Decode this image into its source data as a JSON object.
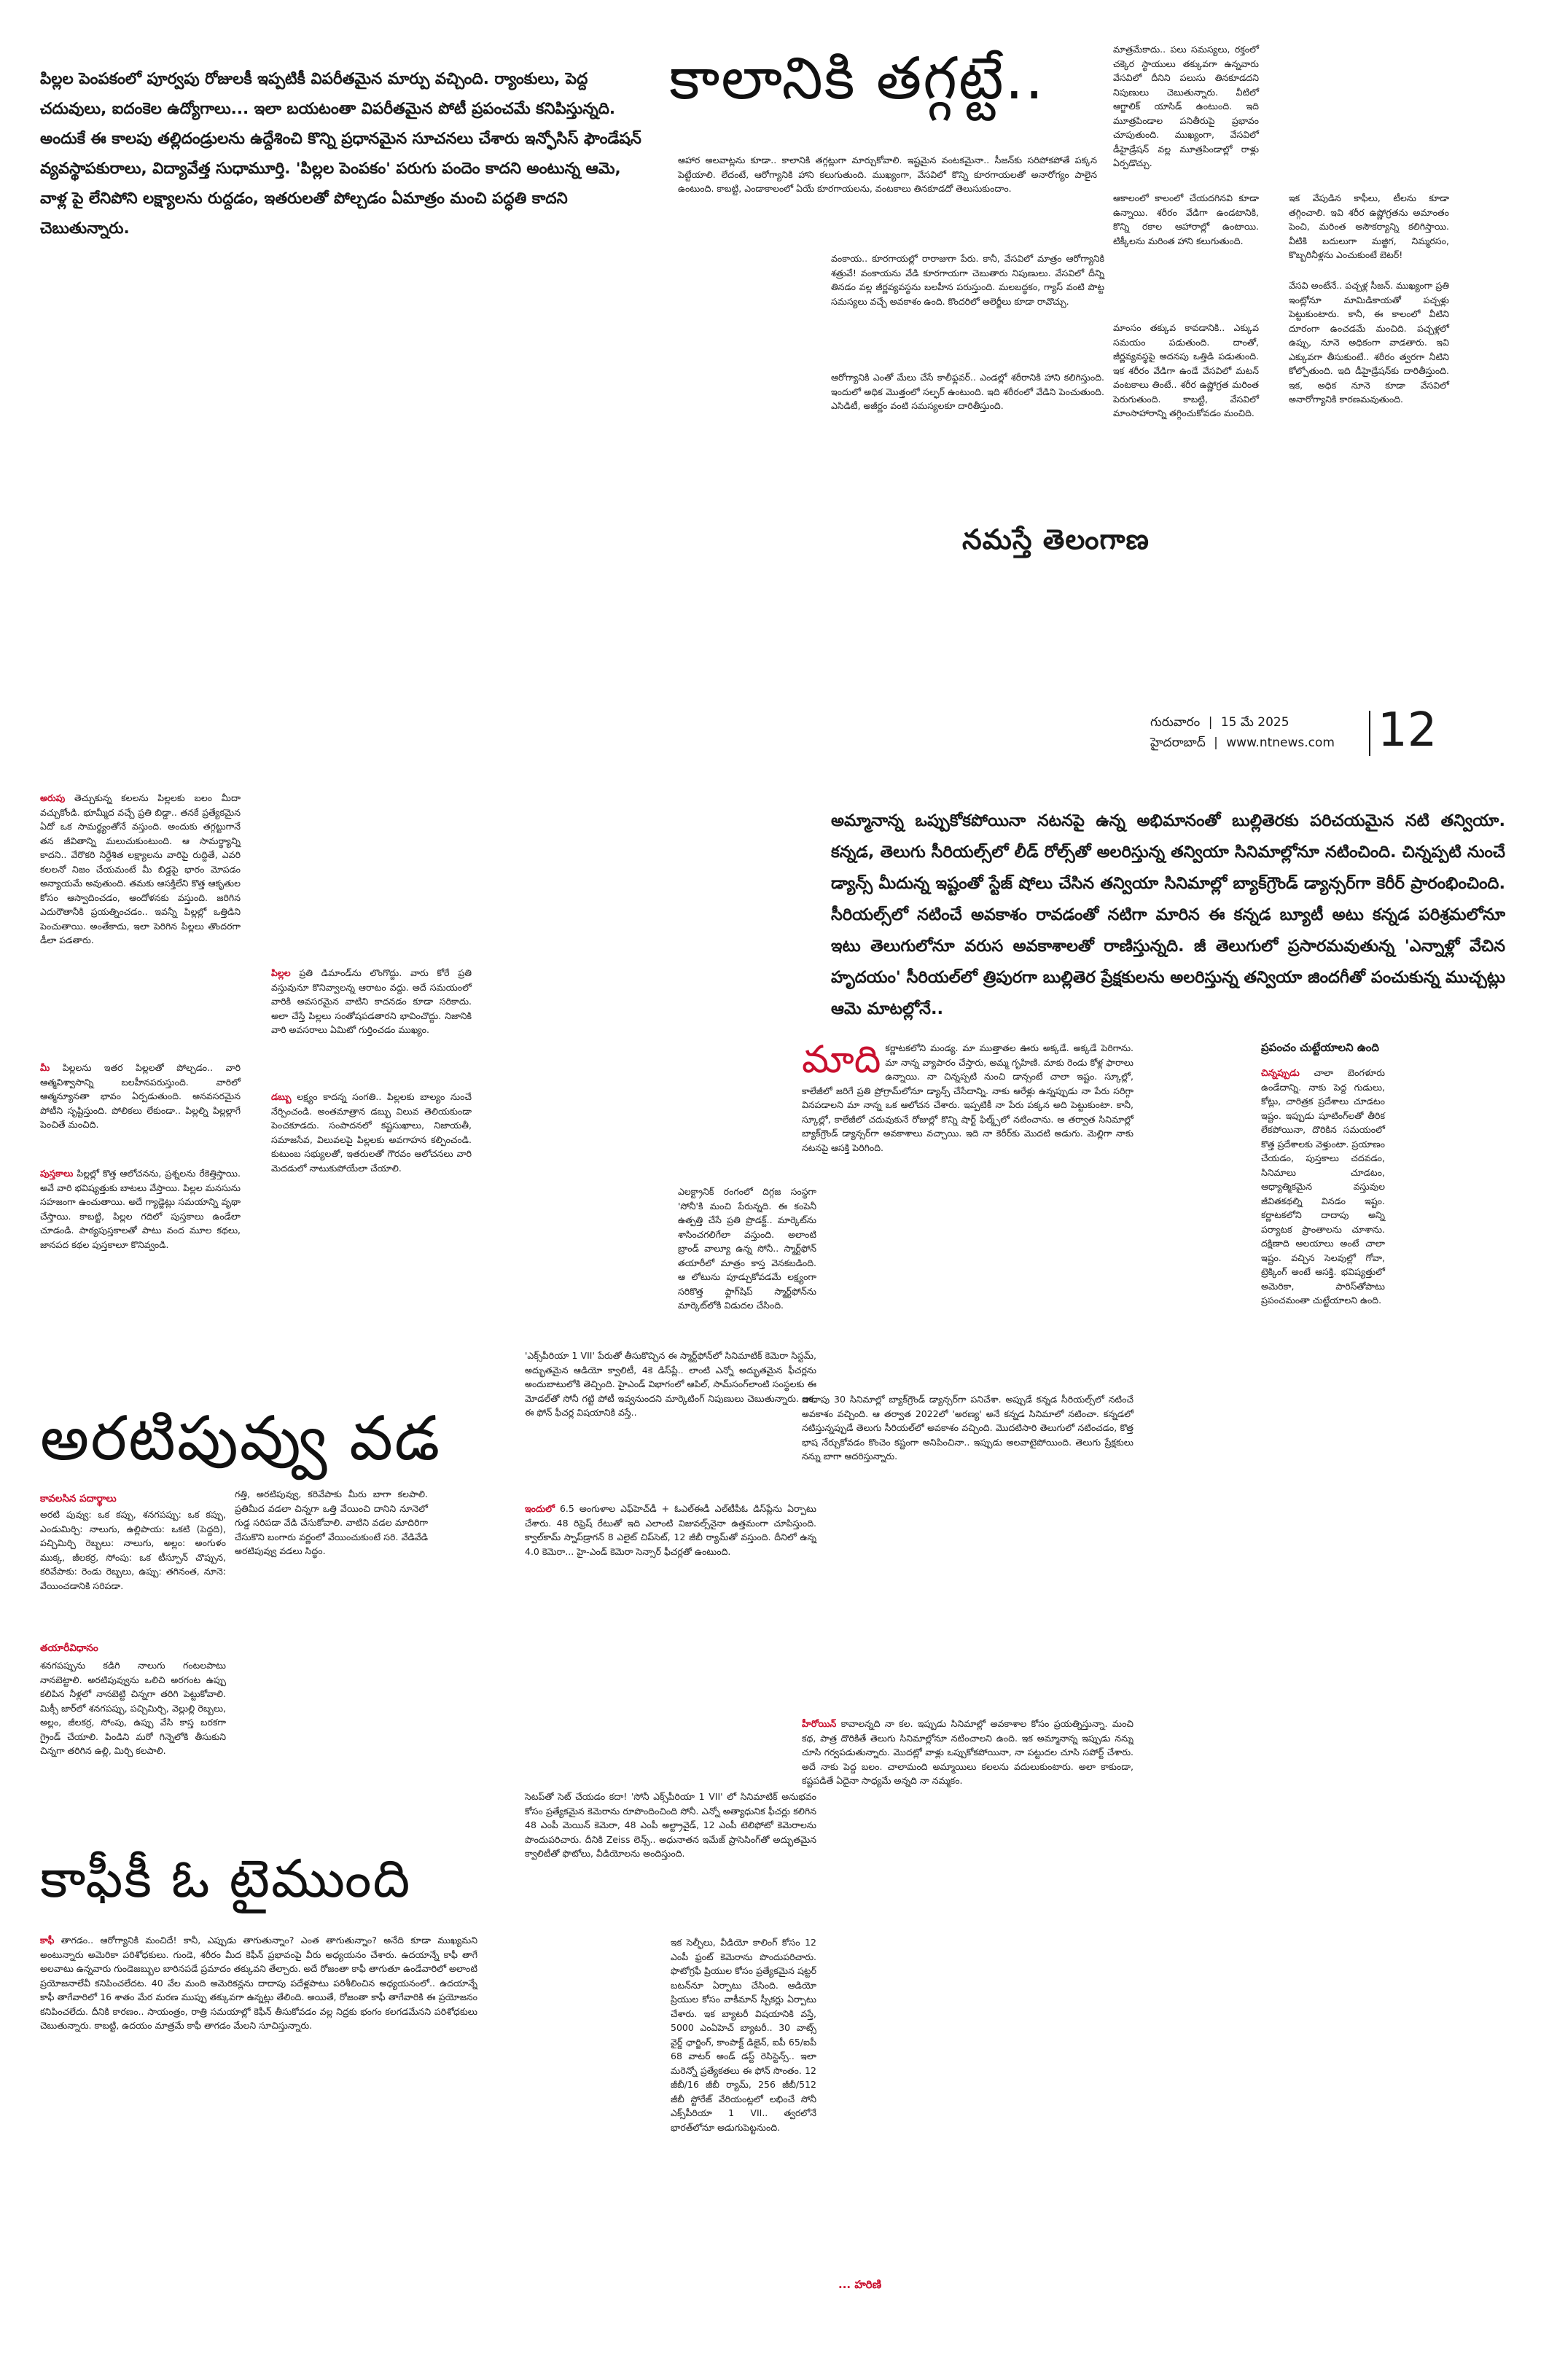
{
  "intro": {
    "paragraph": "పిల్లల పెంపకంలో పూర్వపు రోజులకీ ఇప్పటికీ విపరీతమైన మార్పు వచ్చింది. ర్యాంకులు, పెద్ద చదువులు, ఐదంకెల ఉద్యోగాలు... ఇలా బయటంతా విపరీతమైన పోటీ ప్రపంచమే కనిపిస్తున్నది. అందుకే ఈ కాలపు తల్లిదండ్రులను ఉద్దేశించి కొన్ని ప్రధానమైన సూచనలు చేశారు ఇన్ఫోసిస్ ఫౌండేషన్ వ్యవస్థాపకురాలు, విద్యావేత్త సుధామూర్తి. 'పిల్లల పెంపకం' పరుగు పందెం కాదని అంటున్న ఆమె, వాళ్ల పై లేనిపోని లక్ష్యాలను రుద్దడం, ఇతరులతో పోల్చడం ఏమాత్రం మంచి పద్ధతి కాదని చెబుతున్నారు."
  },
  "kalaniki": {
    "title": "కాలానికి తగ్గట్టే..",
    "col1": "ఆహార అలవాట్లను కూడా.. కాలానికి తగ్గట్లుగా మార్చుకోవాలి. ఇష్టమైన వంటకమైనా.. సీజన్‌కు సరిపోకపోతే పక్కన పెట్టేయాలి. లేదంటే, ఆరోగ్యానికి హాని కలుగుతుంది. ముఖ్యంగా, వేసవిలో కొన్ని కూరగాయలతో అనారోగ్యం పాలైన ఉంటుంది. కాబట్టి, ఎండాకాలంలో ఏయే కూరగాయలను, వంటకాలు తినకూడదో తెలుసుకుందాం.",
    "col1b": "వంకాయ.. కూరగాయల్లో రారాజుగా పేరు. కానీ, వేసవిలో మాత్రం ఆరోగ్యానికి శత్రువే! వంకాయను వేడి కూరగాయగా చెబుతారు నిపుణులు. వేసవిలో దీన్ని తినడం వల్ల జీర్ణవ్యవస్థను బలహీన పరుస్తుంది. మలబద్ధకం, గ్యాస్ వంటి పొట్ట సమస్యలు వచ్చే అవకాశం ఉంది. కొందరిలో అలెర్జీలు కూడా రావొచ్చు.",
    "col1c": "ఆరోగ్యానికి ఎంతో మేలు చేసే కాలీఫ్లవర్.. ఎండల్లో శరీరానికి హాని కలిగిస్తుంది. ఇందులో అధిక మొత్తంలో సల్ఫర్ ఉంటుంది. ఇది శరీరంలో వేడిని పెంచుతుంది. ఎసిడిటీ, అజీర్ణం వంటి సమస్యలకూ దారితీస్తుంది.",
    "col2": "మాత్రమేకాదు.. పలు సమస్యలు, రక్తంలో చక్కెర స్థాయులు తక్కువగా ఉన్నవారు వేసవిలో దీనిని పలుసు తినకూడదని నిపుణులు చెబుతున్నారు. వీటిలో ఆగ్జాలిక్ యాసిడ్ ఉంటుంది. ఇది మూత్రపిండాల పనితీరుపై ప్రభావం చూపుతుంది. ముఖ్యంగా, వేసవిలో డీహైడ్రేషన్ వల్ల మూత్రపిండాల్లో రాళ్లు ఏర్పడొచ్చు.",
    "col2b": "ఆకాలంలో కాలంలో చేయదగినవి కూడా ఉన్నాయి. శరీరం వేడిగా ఉండటానికి, కొన్ని రకాల ఆహారాల్లో ఉంటాయి. టిక్కీలను మరింత హాని కలుగుతుంది.",
    "col2c": "మాంసం తక్కువ కావడానికి.. ఎక్కువ సమయం పడుతుంది. దాంతో, జీర్ణవ్యవస్థపై అదనపు ఒత్తిడి పడుతుంది. ఇక శరీరం వేడిగా ఉండే వేసవిలో మటన్ వంటకాలు తింటే.. శరీర ఉష్ణోగ్రత మరింత పెరుగుతుంది. కాబట్టి, వేసవిలో మాంసాహారాన్ని తగ్గించుకోవడం మంచిది.",
    "col3": "ఇక వేపుడిన కాఫీలు, టీలను కూడా తగ్గించాలి. ఇవి శరీర ఉష్ణోగ్రతను అమాంతం పెంచి, మరింత అసౌకర్యాన్ని కలిగిస్తాయి. వీటికి బదులుగా మజ్జిగ, నిమ్మరసం, కొబ్బరినీళ్లను ఎంచుకుంటే బెటర్!",
    "col3b": "వేసవి అంటేనే.. పచ్చళ్ల సీజన్. ముఖ్యంగా ప్రతి ఇంట్లోనూ మామిడికాయతో పచ్చళ్లు పెట్టుకుంటారు. కానీ, ఈ కాలంలో వీటిని దూరంగా ఉంచడమే మంచిది. పచ్చళ్లలో ఉప్పు, నూనె అధికంగా వాడతారు. ఇవి ఎక్కువగా తీసుకుంటే.. శరీరం త్వరగా నీటిని కోల్పోతుంది. ఇది డీహైడ్రేషన్‌కు దారితీస్తుంది. ఇక, అధిక నూనె కూడా వేసవిలో అనారోగ్యానికి కారణమవుతుంది."
  },
  "brand": {
    "name": "నమస్తే తెలంగాణ",
    "weekday": "గురువారం",
    "date": "15 మే 2025",
    "city": "హైదరాబాద్",
    "site": "www.ntnews.com",
    "page": "12"
  },
  "parenting": {
    "p1_lead": "అరుపు",
    "p1": "తెచ్చుకున్న కలలను పిల్లలకు బలం మీదా వచ్చుకోండి. భూమ్మీద వచ్చే ప్రతి బిడ్డా.. తనకే ప్రత్యేకమైన ఏదో ఒక సామర్థ్యంతోనే వస్తుంది. అందుకు తగ్గట్టుగానే తన జీవితాన్ని మలుచుకుంటుంది. ఆ సామర్థ్యాన్ని కాదని.. వేరొకరి నిర్దేశిత లక్ష్యాలను వారిపై రుద్దితే, ఎవరి కలలనో నిజం చేయమంటే మీ బిడ్డపై భారం మోపడం అన్యాయమే అవుతుంది. తమకు ఆసక్తిలేని కొత్త ఆకృతుల కోసం ఆస్వాదించడం, ఆందోళనకు వస్తుంది. జరిగిన ఎదురౌతానీకి ప్రయత్నించడం.. ఇవన్నీ పిల్లల్లో ఒత్తిడిని పెంచుతాయి. అంతేకాదు, ఇలా పెరిగిన పిల్లలు తొందరగా డీలా పడతారు.",
    "p2_lead": "మీ",
    "p2": "పిల్లలను ఇతర పిల్లలతో పోల్చడం.. వారి ఆత్మవిశ్వాసాన్ని బలహీనపరుస్తుంది. వారిలో ఆత్మన్యూనతా భావం ఏర్పడుతుంది. అనవసరమైన పోటీని సృష్టిస్తుంది. పోలికలు లేకుండా.. పిల్లల్ని పిల్లల్లాగే పెంచితే మంచిది.",
    "p3_lead": "పుస్తకాలు",
    "p3": "పిల్లల్లో కొత్త ఆలోచనను, ప్రశ్నలను రేకెత్తిస్తాయి. అవే వారి భవిష్యత్తుకు బాటలు వేస్తాయి. పిల్లల మనసును సహజంగా ఉంచుతాయి. అదే గ్యాడ్జెట్లు సమయాన్ని వృథా చేస్తాయి. కాబట్టి, పిల్లల గదిలో పుస్తకాలు ఉండేలా చూడండి. పాఠ్యపుస్తకాలతో పాటు వంద మూల కథలు, జానపద కథల పుస్తకాలూ కొనివ్వండి.",
    "p4_lead": "పిల్లల",
    "p4": "ప్రతి డిమాండ్‌ను లొంగొద్దు. వారు కోరే ప్రతి వస్తువునూ కొనివ్వాలన్న ఆరాటం వద్దు. అదే సమయంలో వారికి అవసరమైన వాటిని కాదనడం కూడా సరికాదు. అలా చేస్తే పిల్లలు సంతోషపడతారని భావించొద్దు. నిజానికి వారి అవసరాలు ఏమిటో గుర్తించడం ముఖ్యం.",
    "p5_lead": "డబ్బు",
    "p5": "లక్ష్యం కాదన్న సంగతి.. పిల్లలకు బాల్యం నుంచే నేర్పించండి. అంతమాత్రాన డబ్బు విలువ తెలియకుండా పెంచకూడదు. సంపాదనలో కష్టసుఖాలు, నిజాయతీ, సమాజసేవ, విలువలపై పిల్లలకు అవగాహన కల్పించండి. కుటుంబ సభ్యులతో, ఇతరులతో గౌరవం ఆలోచనలు వారి మెదడులో నాటుకుపోయేలా చేయాలి."
  },
  "phone": {
    "col1": "ఎలక్ట్రానిక్ రంగంలో దిగ్గజ సంస్థగా 'సోనీ'కి మంచి పేరున్నది. ఈ కంపెనీ ఉత్పత్తి చేసే ప్రతి ప్రొడక్ట్.. మార్కెట్‌ను శాసించగలిగేలా వస్తుంది. అలాంటి బ్రాండ్ వాల్యూ ఉన్న సోనీ.. స్మార్ట్‌ఫోన్ తయారీలో మాత్రం కాస్త వెనకబడింది. ఆ లోటును పూడ్చుకోవడమే లక్ష్యంగా సరికొత్త ఫ్లాగ్‌షిప్ స్మార్ట్‌ఫోన్‌ను మార్కెట్‌లోకి విడుదల చేసింది.",
    "col1b": "'ఎక్స్‌పీరియా 1 VII' పేరుతో తీసుకొచ్చిన ఈ స్మార్ట్‌ఫోన్‌లో సినిమాటిక్ కెమెరా సిస్టమ్, అద్భుతమైన ఆడియో క్వాలిటీ, 4కె డిస్‌ప్లే.. లాంటి ఎన్నో అద్భుతమైన ఫీచర్లను అందుబాటులోకి తెచ్చింది. హైఎండ్ విభాగంలో ఆపిల్, సామ్‌సంగ్‌లాంటి సంస్థలకు ఈ మోడల్‌తో సోనీ గట్టి పోటీ ఇవ్వనుందని మార్కెటింగ్ నిపుణులు చెబుతున్నారు. ఇక, ఈ ఫోన్ ఫీచర్ల విషయానికి వస్తే..",
    "col2_lead": "ఇందులో",
    "col2": "6.5 అంగుళాల ఎఫ్‌హెచ్‌డీ + ఓఎల్ఈడీ ఎల్‌టీపీఓ డిస్‌ప్లేను ఏర్పాటు చేశారు. 48 రిఫ్రెష్ రేటుతో ఇది ఎలాంటి విజువల్స్‌నైనా ఉత్తమంగా చూపిస్తుంది. క్వాల్‌కామ్ స్నాప్‌డ్రాగన్ 8 ఎలైట్ చిప్‌సెట్, 12 జీబీ ర్యామ్‌తో వస్తుంది. దీనిలో ఉన్న 4.0 కెమెరా... హై-ఎండ్ కెమెరా సెన్సార్ ఫీచర్లతో ఉంటుంది.",
    "col3": "సెటప్‌తో సెట్ చేయడం కదా! 'సోనీ ఎక్స్‌పీరియా 1 VII' లో సినిమాటిక్ అనుభవం కోసం ప్రత్యేకమైన కెమెరాను రూపొందించింది సోనీ. ఎన్నో అత్యాధునిక ఫీచర్లు కలిగిన 48 ఎంపీ మెయిన్ కెమెరా, 48 ఎంపీ అల్ట్రావైడ్, 12 ఎంపీ టెలిఫోటో కెమెరాలను పొందుపరిచారు. దీనికి Zeiss లెన్స్.. అధునాతన ఇమేజ్ ప్రాసెసింగ్‌తో అద్భుతమైన క్వాలిటీతో ఫొటోలు, వీడియోలను అందిస్తుంది.",
    "col3b": "ఇక సెల్ఫీలు, వీడియో కాలింగ్ కోసం 12 ఎంపీ ఫ్రంట్ కెమెరాను పొందుపరిచారు. ఫొటోగ్రఫీ ప్రియుల కోసం ప్రత్యేకమైన షట్టర్ బటన్‌నూ ఏర్పాటు చేసింది. ఆడియో ప్రియుల కోసం వాకీమాన్ స్పీకర్లు ఏర్పాటు చేశారు. ఇక బ్యాటరీ విషయానికి వస్తే, 5000 ఎంఏహెచ్ బ్యాటరీ.. 30 వాట్స్ వైర్డ్ ఛార్జింగ్, కాంపాక్ట్ డిజైన్, ఐపీ 65/ఐపీ 68 వాటర్ అండ్ డస్ట్ రెసిస్టెన్స్.. ఇలా మరెన్నో ప్రత్యేకతలు ఈ ఫోన్ సొంతం. 12 జీబీ/16 జీబీ ర్యామ్, 256 జీబీ/512 జీబీ స్టోరేజ్ వేరియంట్లలో లభించే సోనీ ఎక్స్‌పీరియా 1 VII.. త్వరలోనే భారత్‌లోనూ అడుగుపెట్టనుంది."
  },
  "recipe": {
    "title": "అరటిపువ్వు వడ",
    "ing_head": "కావలసిన పదార్థాలు",
    "ing": "అరటి పువ్వు: ఒక కప్పు, శనగపప్పు: ఒక కప్పు, ఎండుమిర్చి: నాలుగు, ఉల్లిపాయ: ఒకటి (పెద్దది), పచ్చిమిర్చి రెబ్బలు: నాలుగు, అల్లం: అంగుళం ముక్క, జీలకర్ర, సోంపు: ఒక టీస్పూన్ చొప్పున, కరివేపాకు: రెండు రెబ్బలు, ఉప్పు: తగినంత, నూనె: వేయించడానికి సరిపడా.",
    "ing_side": "గత్తి, అరటిపువ్వు, కరివేపాకు మీరు బాగా కలపాలి. ప్రతిమీద వడలా చిన్నగా ఒత్తి వేయించి దానిని నూనెలో గుడ్డ సరిపడా వేడి చేసుకోవాలి. వాటిని వడల మాదిరిగా చేసుకొని బంగారు వర్ణంలో వేయించుకుంటే సరి. వేడివేడి అరటిపువ్వు వడలు సిద్ధం.",
    "prep_head": "తయారీవిధానం",
    "prep": "శనగపప్పును కడిగి నాలుగు గంటలపాటు నానబెట్టాలి. అరటిపువ్వును ఒలిచి అరగంట ఉప్పు కలిపిన నీళ్లలో నానబెట్టి చిన్నగా తరిగి పెట్టుకోవాలి. మిక్సీ జార్‌లో శనగపప్పు, పచ్చిమిర్చి, వెల్లుల్లి రెబ్బలు, అల్లం, జీలకర్ర, సోంపు, ఉప్పు వేసి కాస్త బరకగా గ్రైండ్ చేయాలి. పిండిని మరో గిన్నెలోకి తీసుకుని చిన్నగా తరిగిన ఉల్లి, మిర్చి కలపాలి."
  },
  "coffee": {
    "title": "కాఫీకీ ఓ టైముంది",
    "lead": "కాఫీ",
    "body": "తాగడం.. ఆరోగ్యానికి మంచిదే! కానీ, ఎప్పుడు తాగుతున్నాం? ఎంత తాగుతున్నాం? అనేది కూడా ముఖ్యమని అంటున్నారు అమెరికా పరిశోధకులు. గుండె, శరీరం మీద కెఫీన్ ప్రభావంపై వీరు అధ్యయనం చేశారు. ఉదయాన్నే కాఫీ తాగే అలవాటు ఉన్నవారు గుండెజబ్బుల బారినపడే ప్రమాదం తక్కువని తేల్చారు. అదే రోజంతా కాఫీ తాగుతూ ఉండేవారిలో అలాంటి ప్రయోజనాలేవీ కనిపించలేదట. 40 వేల మంది అమెరికన్లను దాదాపు పదేళ్లపాటు పరిశీలించిన అధ్యయనంలో.. ఉదయాన్నే కాఫీ తాగేవారిలో 16 శాతం మేర మరణ ముప్పు తక్కువగా ఉన్నట్లు తేలింది. అయితే, రోజంతా కాఫీ తాగేవారికి ఈ ప్రయోజనం కనిపించలేదు. దీనికి కారణం.. సాయంత్రం, రాత్రి సమయాల్లో కెఫీన్ తీసుకోవడం వల్ల నిద్రకు భంగం కలగడమేనని పరిశోధకులు చెబుతున్నారు. కాబట్టి, ఉదయం మాత్రమే కాఫీ తాగడం మేలని సూచిస్తున్నారు."
  },
  "tanniya": {
    "lead": "అమ్మానాన్న ఒప్పుకోకపోయినా నటనపై ఉన్న అభిమానంతో బుల్లితెరకు పరిచయమైన నటి తన్వియా. కన్నడ, తెలుగు సీరియల్స్‌లో లీడ్ రోల్స్‌తో అలరిస్తున్న తన్వియా సినిమాల్లోనూ నటించింది. చిన్నప్పటి నుంచే డ్యాన్స్ మీదున్న ఇష్టంతో స్టేజ్ షోలు చేసిన తన్వియా సినిమాల్లో బ్యాక్‌గ్రౌండ్ డ్యాన్సర్‌గా కెరీర్ ప్రారంభించింది. సీరియల్స్‌లో నటించే అవకాశం రావడంతో నటిగా మారిన ఈ కన్నడ బ్యూటీ అటు కన్నడ పరిశ్రమలోనూ ఇటు తెలుగులోనూ వరుస అవకాశాలతో రాణిస్తున్నది. జీ తెలుగులో ప్రసారమవుతున్న 'ఎన్నాళ్లో వేచిన హృదయం' సీరియల్‌లో త్రిపురగా బుల్లితెర ప్రేక్షకులను అలరిస్తున్న తన్వియా జిందగీతో పంచుకున్న ముచ్చట్లు ఆమె మాటల్లోనే..",
    "madi_lead": "మాది",
    "madi": "కర్ణాటకలోని మండ్య. మా ముత్తాతల ఊరు అక్కడే. అక్కడే పెరిగాను. మా నాన్న వ్యాపారం చేస్తారు, అమ్మ గృహిణి. మాకు రెండు కోళ్ల ఫారాలు ఉన్నాయి. నా చిన్నప్పటి నుంచి డాన్సంటే చాలా ఇష్టం. స్కూల్లో, కాలేజీలో జరిగే ప్రతి ప్రోగ్రామ్‌లోనూ డ్యాన్స్ చేసేదాన్ని. నాకు ఆరేళ్లు ఉన్నప్పుడు నా పేరు సరిగ్గా వినపడాలని మా నాన్న ఒక ఆలోచన చేశారు. ఇప్పటికీ నా పేరు పక్కన అది పెట్టుకుంటా. కానీ, స్కూల్లో, కాలేజీలో చదువుకునే రోజుల్లో కొన్ని షార్ట్ ఫిల్మ్స్‌లో నటించాను. ఆ తర్వాత సినిమాల్లో బ్యాక్‌గ్రౌండ్ డ్యాన్సర్‌గా అవకాశాలు వచ్చాయి. ఇది నా కెరీర్‌కు మొదటి అడుగు. మెల్లిగా నాకు నటనపై ఆసక్తి పెరిగింది.",
    "madi2": "దాదాపు 30 సినిమాల్లో బ్యాక్‌గ్రౌండ్ డ్యాన్సర్‌గా పనిచేశా. అప్పుడే కన్నడ సీరియల్స్‌లో నటించే అవకాశం వచ్చింది. ఆ తర్వాత 2022లో 'అరణ్య' అనే కన్నడ సినిమాలో నటించా. కన్నడలో నటిస్తున్నప్పుడే తెలుగు సీరియల్‌లో అవకాశం వచ్చింది. మొదటిసారి తెలుగులో నటించడం, కొత్త భాష నేర్చుకోవడం కొంచెం కష్టంగా అనిపించినా.. ఇప్పుడు అలవాటైపోయింది. తెలుగు ప్రేక్షకులు నన్ను బాగా ఆదరిస్తున్నారు.",
    "hero_lead": "హీరోయిన్",
    "hero": "కావాలన్నది నా కల. ఇప్పుడు సినిమాల్లో అవకాశాల కోసం ప్రయత్నిస్తున్నా. మంచి కథ, పాత్ర దొరికితే తెలుగు సినిమాల్లోనూ నటించాలని ఉంది. ఇక అమ్మానాన్న ఇప్పుడు నన్ను చూసి గర్వపడుతున్నారు. మొదట్లో వాళ్లు ఒప్పుకోకపోయినా, నా పట్టుదల చూసి సపోర్ట్ చేశారు. అదే నాకు పెద్ద బలం. చాలామంది అమ్మాయిలు కలలను వదులుకుంటారు. అలా కాకుండా, కష్టపడితే ఏదైనా సాధ్యమే అన్నది నా నమ్మకం.",
    "sig": "... హరిణి"
  },
  "sidebar": {
    "title": "ప్రపంచం చుట్టేయాలని ఉంది",
    "lead": "చిన్నప్పుడు",
    "body": "చాలా బెంగళూరు ఉండేదాన్ని. నాకు పెద్ద గుడులు, కోట్లు, చారిత్రక ప్రదేశాలు చూడటం ఇష్టం. ఇప్పుడు షూటింగ్‌లతో తీరిక లేకపోయినా, దొరికిన సమయంలో కొత్త ప్రదేశాలకు వెళ్తుంటా. ప్రయాణం చేయడం, పుస్తకాలు చదవడం, సినిమాలు చూడటం, ఆధ్యాత్మికమైన వస్తువుల జీవితకథల్ని వినడం ఇష్టం. కర్ణాటకలోని దాదాపు అన్ని పర్యాటక ప్రాంతాలను చూశాను. దక్షిణాది ఆలయాలు అంటే చాలా ఇష్టం. వచ్చిన సెలవుల్లో గోవా, ట్రెక్కింగ్ అంటే ఆసక్తి. భవిష్యత్తులో అమెరికా, పారిస్‌తోపాటు ప్రపంచమంతా చుట్టేయాలని ఉంది."
  }
}
